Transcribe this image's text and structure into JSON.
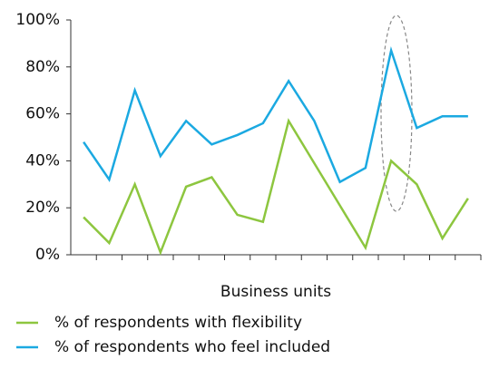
{
  "chart_data": {
    "type": "line",
    "x_label": "Business units",
    "categories": [
      null,
      null,
      null,
      null,
      null,
      null,
      null,
      null,
      null,
      null,
      null,
      null,
      null,
      null,
      null,
      null
    ],
    "series": [
      {
        "name": "% of respondents with flexibility",
        "color": "#8dc63f",
        "values": [
          16,
          5,
          30,
          1,
          29,
          33,
          17,
          14,
          57,
          39,
          21,
          3,
          40,
          30,
          7,
          24
        ]
      },
      {
        "name": "% of respondents who feel included",
        "color": "#1ba9e1",
        "values": [
          48,
          32,
          70,
          42,
          57,
          47,
          51,
          56,
          74,
          57,
          31,
          37,
          87,
          54,
          59,
          59
        ]
      }
    ],
    "ylim": [
      0,
      100
    ],
    "yticks": [
      {
        "value": 0,
        "label": "0%"
      },
      {
        "value": 20,
        "label": "20%"
      },
      {
        "value": 40,
        "label": "40%"
      },
      {
        "value": 60,
        "label": "60%"
      },
      {
        "value": 80,
        "label": "80%"
      },
      {
        "value": 100,
        "label": "100%"
      }
    ],
    "grid": false
  }
}
